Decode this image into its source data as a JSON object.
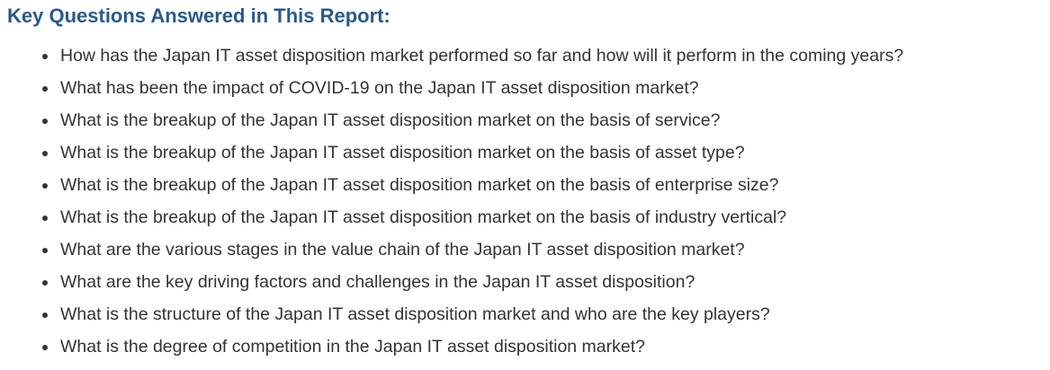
{
  "heading": "Key Questions Answered in This Report:",
  "questions": [
    "How has the Japan IT asset disposition market performed so far and how will it perform in the coming years?",
    "What has been the impact of COVID-19 on the Japan IT asset disposition market?",
    "What is the breakup of the Japan IT asset disposition market on the basis of service?",
    "What is the breakup of the Japan IT asset disposition market on the basis of asset type?",
    "What is the breakup of the Japan IT asset disposition market on the basis of enterprise size?",
    "What is the breakup of the Japan IT asset disposition market on the basis of industry vertical?",
    "What are the various stages in the value chain of the Japan IT asset disposition market?",
    "What are the key driving factors and challenges in the Japan IT asset disposition?",
    "What is the structure of the Japan IT asset disposition market and who are the key players?",
    "What is the degree of competition in the Japan IT asset disposition market?"
  ],
  "colors": {
    "heading": "#2b5a86",
    "text": "#333333",
    "background": "#ffffff"
  }
}
